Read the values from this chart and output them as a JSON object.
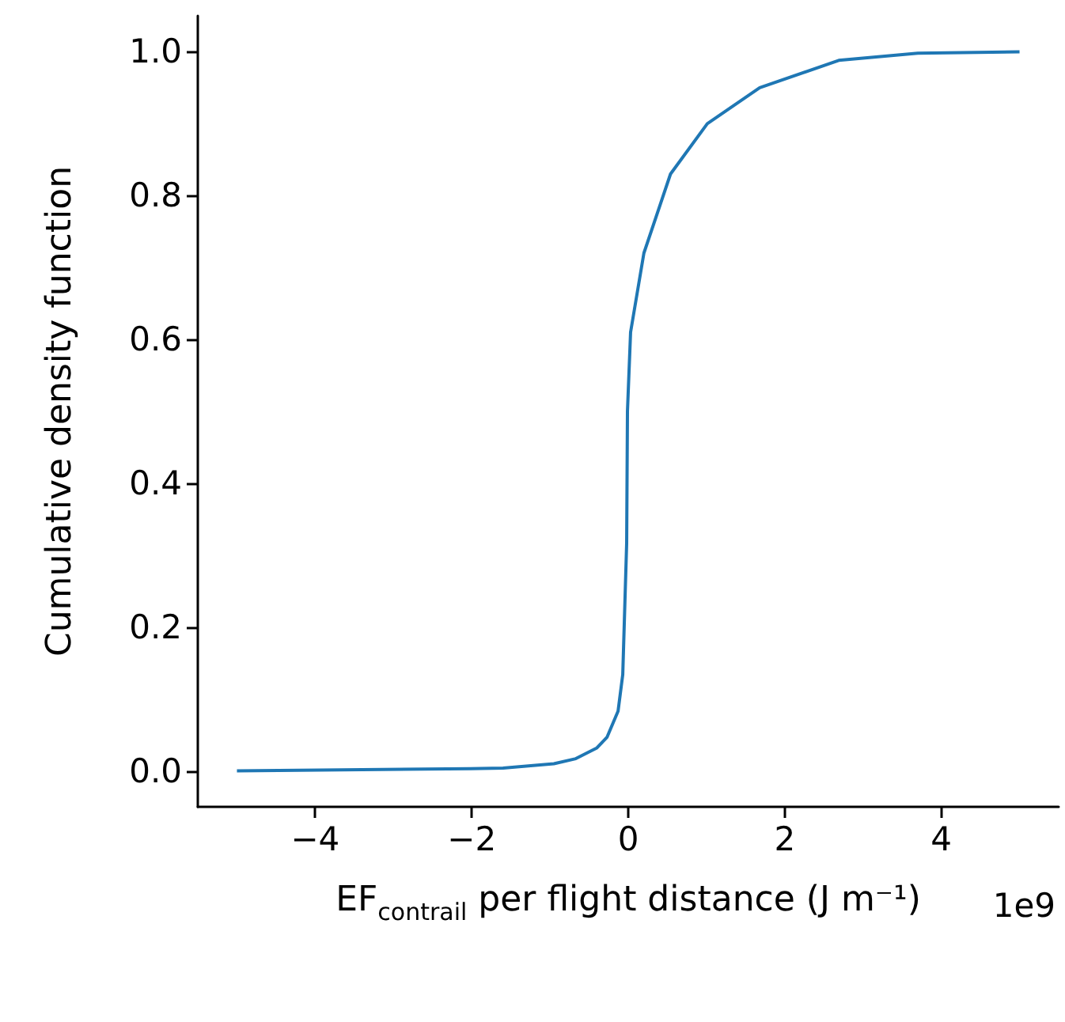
{
  "chart_data": {
    "type": "line",
    "xlabel": "EF$_{contrail}$ per flight distance (J m⁻¹)",
    "ylabel": "Cumulative density function",
    "annotations": [
      "1e9"
    ],
    "series": [
      {
        "color": "#1f77b4",
        "x": [
          -5,
          -2.02,
          -1.6,
          -0.95,
          -0.67,
          -0.4,
          -0.27,
          -0.13,
          -0.07,
          -0.02,
          -0.01,
          0.03,
          0.2,
          0.54,
          1.01,
          1.68,
          2.69,
          3.7,
          5
        ],
        "values": [
          0,
          0.003,
          0.004,
          0.01,
          0.017,
          0.032,
          0.047,
          0.083,
          0.134,
          0.317,
          0.5,
          0.61,
          0.72,
          0.83,
          0.9,
          0.95,
          0.988,
          0.998,
          1.0
        ]
      }
    ],
    "xlim": [
      -5.5,
      5.5
    ],
    "ylim": [
      -0.05,
      1.05
    ],
    "xticks": [
      {
        "value": -4,
        "label": "−4"
      },
      {
        "value": -2,
        "label": "−2"
      },
      0,
      2,
      4
    ],
    "yticks": [
      {
        "value": 0,
        "label": "0.0"
      },
      {
        "value": 0.2,
        "label": "0.2"
      },
      {
        "value": 0.4,
        "label": "0.4"
      },
      {
        "value": 0.6,
        "label": "0.6"
      },
      {
        "value": 0.8,
        "label": "0.8"
      },
      {
        "value": 1,
        "label": "1.0"
      }
    ],
    "grid": false,
    "marker": "none",
    "line_style": "solid"
  }
}
